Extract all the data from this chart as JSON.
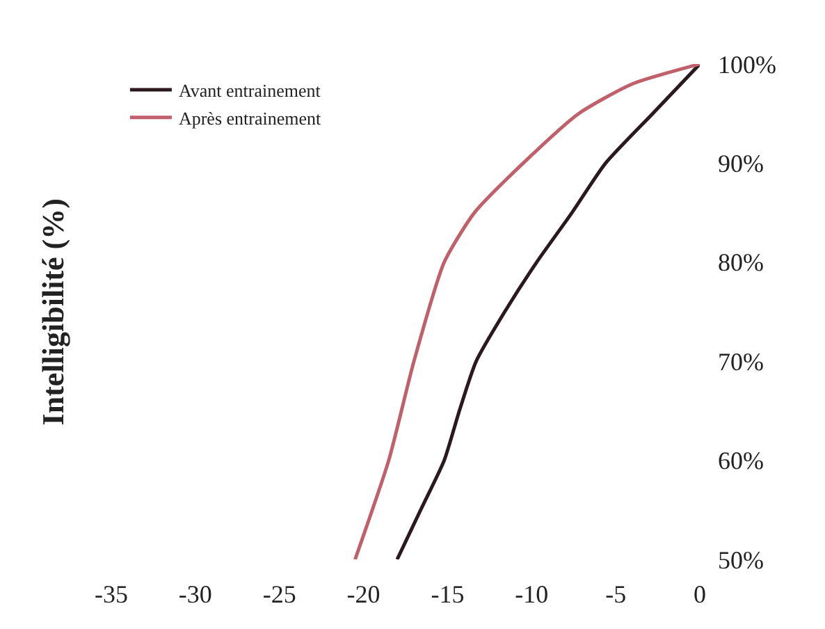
{
  "chart_data": {
    "type": "line",
    "ylabel": "Intelligibilité (%)",
    "series": [
      {
        "name": "Avant entrainement",
        "color": "#2a1a1e",
        "x": [
          -18,
          -16.6,
          -15.2,
          -14.3,
          -13.3,
          -11.6,
          -9.7,
          -7.6,
          -5.6,
          -2.8,
          0
        ],
        "values": [
          50,
          55,
          60,
          65,
          70,
          75,
          80,
          85,
          90,
          95,
          100
        ]
      },
      {
        "name": "Après entrainement",
        "color": "#c0606a",
        "x": [
          -20.5,
          -18.5,
          -17,
          -15.2,
          -13.4,
          -10.5,
          -7.2,
          -4,
          0
        ],
        "values": [
          50,
          60,
          70,
          80,
          85,
          90,
          95,
          98,
          100
        ]
      }
    ],
    "xlim": [
      -35,
      0
    ],
    "xticks": [
      -35,
      -30,
      -25,
      -20,
      -15,
      -10,
      -5,
      0
    ],
    "ylim": [
      50,
      100
    ],
    "yticks": [
      {
        "value": 50,
        "label": "50%"
      },
      {
        "value": 60,
        "label": "60%"
      },
      {
        "value": 70,
        "label": "70%"
      },
      {
        "value": 80,
        "label": "80%"
      },
      {
        "value": 90,
        "label": "90%"
      },
      {
        "value": 100,
        "label": "100%"
      }
    ],
    "grid": false,
    "legend": "top left",
    "marker": "none",
    "line_style": "solid"
  }
}
